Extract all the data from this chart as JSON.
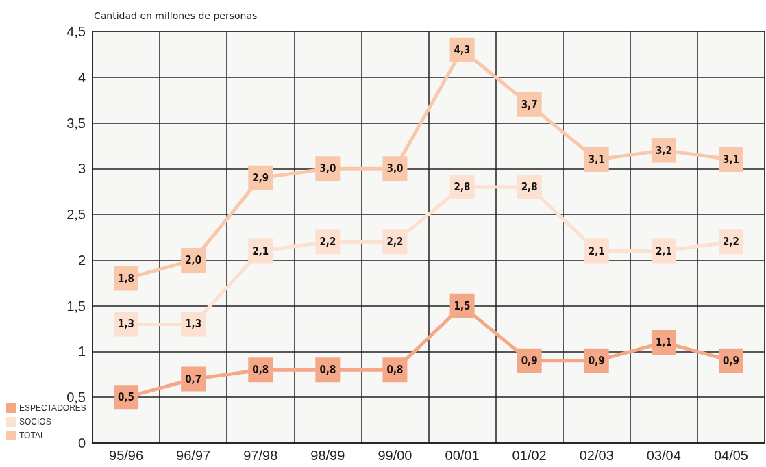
{
  "chart_data": {
    "type": "line",
    "ylabel": "Cantidad en millones de personas",
    "categories": [
      "95/96",
      "96/97",
      "97/98",
      "98/99",
      "99/00",
      "00/01",
      "01/02",
      "02/03",
      "03/04",
      "04/05"
    ],
    "series": [
      {
        "name": "ESPECTADORES",
        "color": "#f4a887",
        "values": [
          0.5,
          0.7,
          0.8,
          0.8,
          0.8,
          1.5,
          0.9,
          0.9,
          1.1,
          0.9
        ],
        "value_labels": [
          "0,5",
          "0,7",
          "0,8",
          "0,8",
          "0,8",
          "1,5",
          "0,9",
          "0,9",
          "1,1",
          "0,9"
        ]
      },
      {
        "name": "SOCIOS",
        "color": "#fce0d0",
        "values": [
          1.3,
          1.3,
          2.1,
          2.2,
          2.2,
          2.8,
          2.8,
          2.1,
          2.1,
          2.2
        ],
        "value_labels": [
          "1,3",
          "1,3",
          "2,1",
          "2,2",
          "2,2",
          "2,8",
          "2,8",
          "2,1",
          "2,1",
          "2,2"
        ]
      },
      {
        "name": "TOTAL",
        "color": "#f9c7aa",
        "values": [
          1.8,
          2.0,
          2.9,
          3.0,
          3.0,
          4.3,
          3.7,
          3.1,
          3.2,
          3.1
        ],
        "value_labels": [
          "1,8",
          "2,0",
          "2,9",
          "3,0",
          "3,0",
          "4,3",
          "3,7",
          "3,1",
          "3,2",
          "3,1"
        ]
      }
    ],
    "ylim": [
      0,
      4.5
    ],
    "yticks": [
      0,
      {
        "value": 0.5,
        "label": "0,5"
      },
      1,
      {
        "value": 1.5,
        "label": "1,5"
      },
      2,
      {
        "value": 2.5,
        "label": "2,5"
      },
      3,
      {
        "value": 3.5,
        "label": "3,5"
      },
      4,
      {
        "value": 4.5,
        "label": "4,5"
      }
    ],
    "grid": true,
    "legend": "bottom left",
    "marker": "square",
    "line_style": "solid"
  }
}
